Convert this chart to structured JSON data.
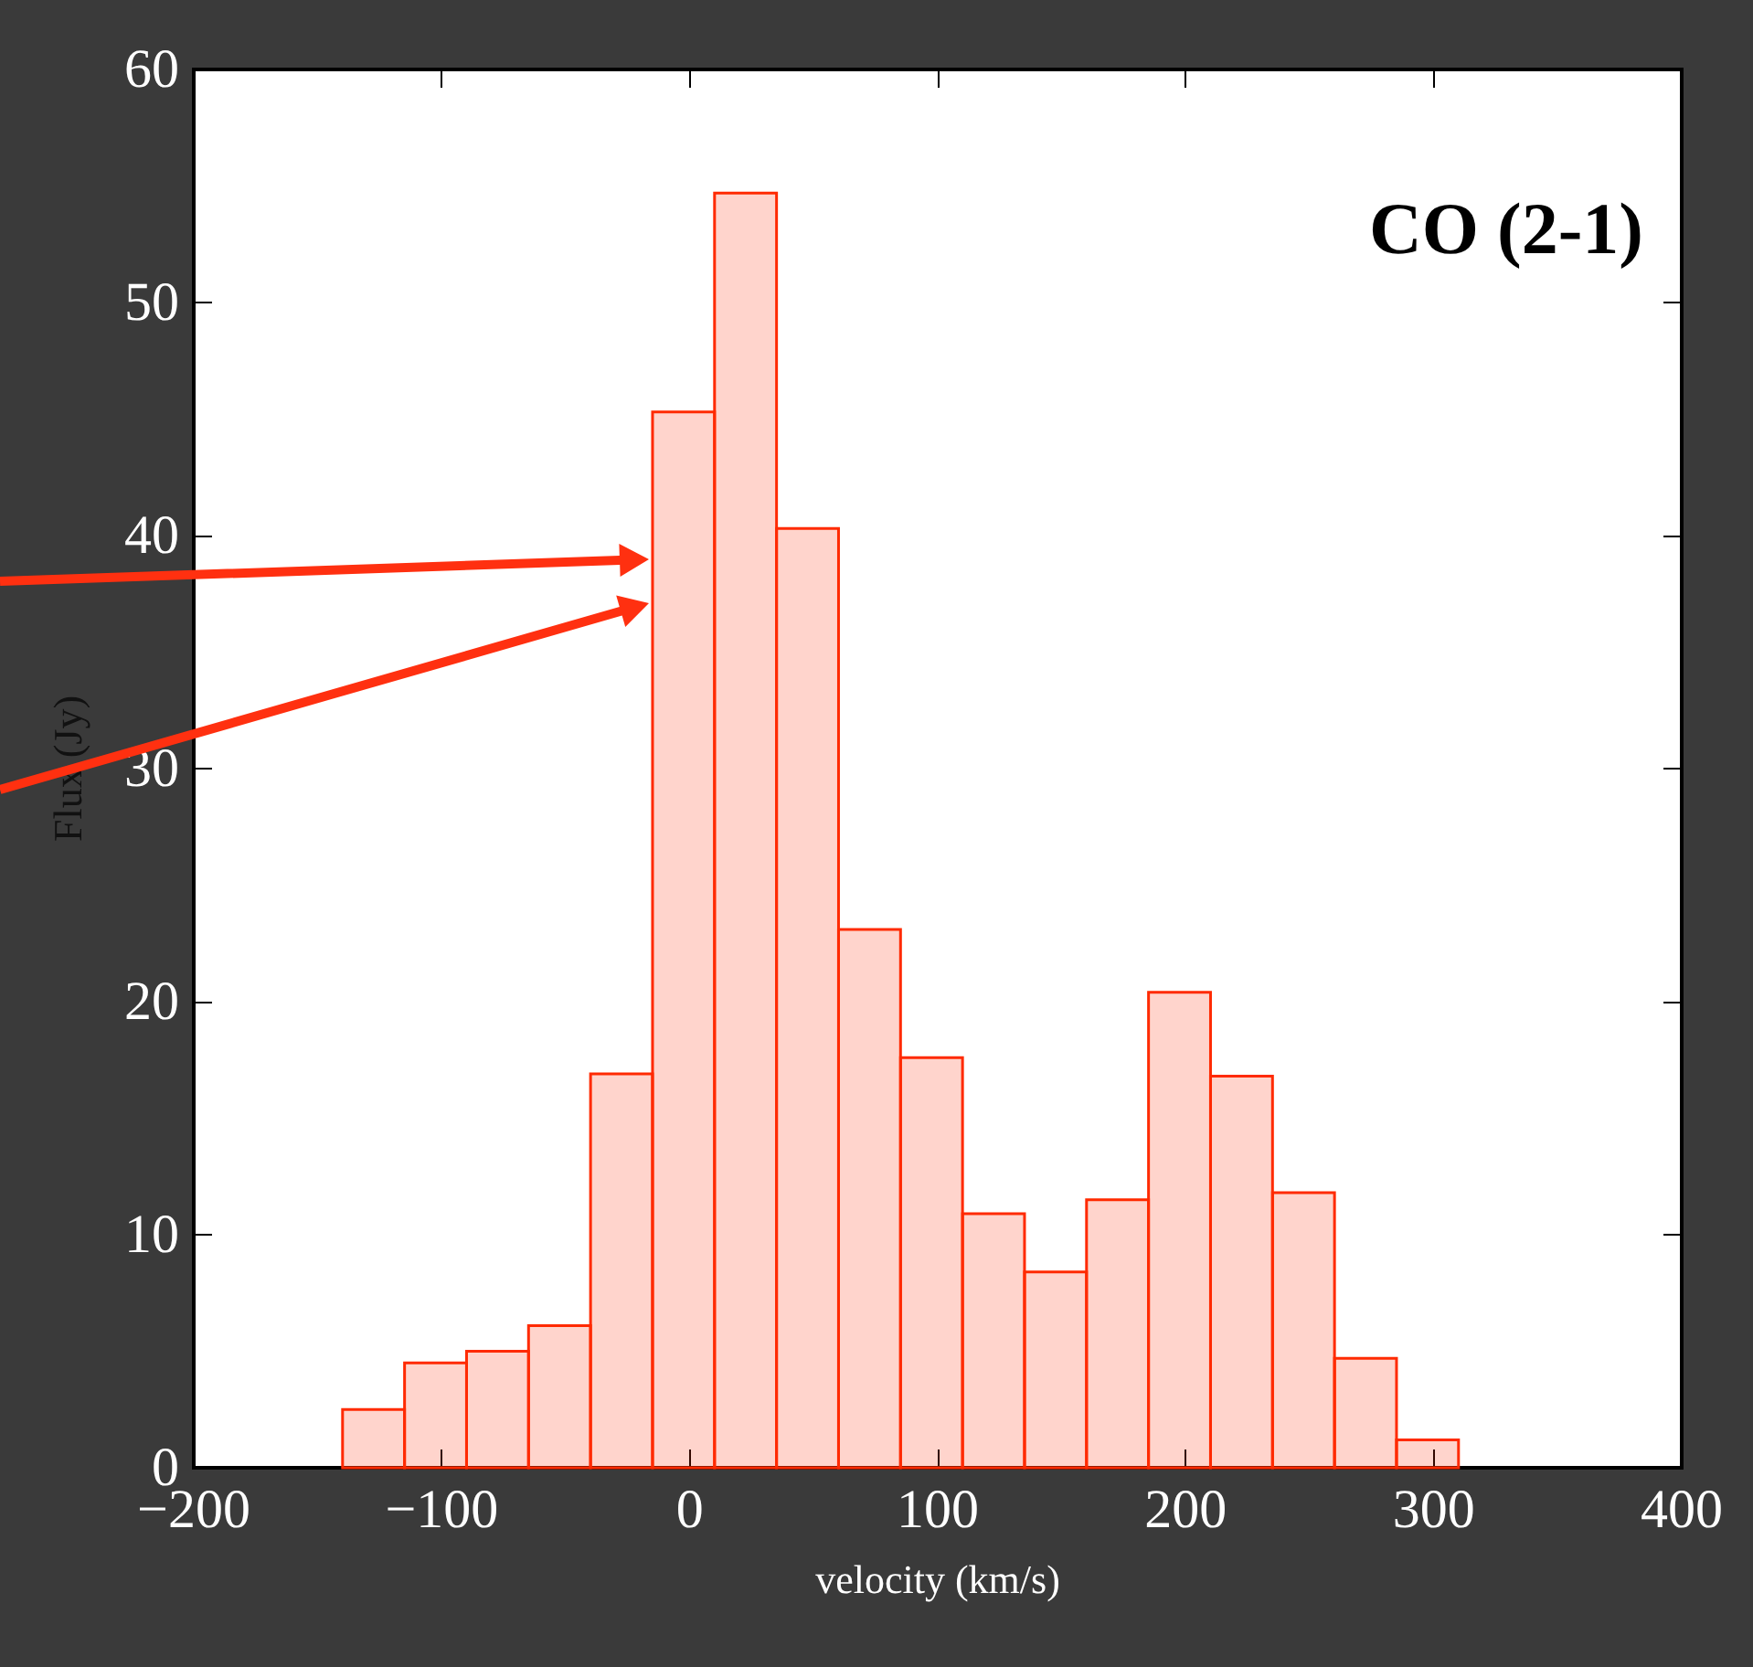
{
  "chart_data": {
    "type": "histogram",
    "xlabel": "velocity (km/s)",
    "ylabel": "Flux (Jy)",
    "annotations": [
      "CO (2-1)"
    ],
    "bins": [
      -140,
      -115,
      -90,
      -65,
      -40,
      -15,
      10,
      35,
      60,
      85,
      110,
      135,
      160,
      185,
      210,
      235,
      260,
      285,
      310
    ],
    "values": [
      2.5,
      4.5,
      5.0,
      6.1,
      16.9,
      45.3,
      54.7,
      40.3,
      23.1,
      17.6,
      10.9,
      8.4,
      11.5,
      20.4,
      16.8,
      11.8,
      4.7,
      1.2
    ],
    "color": "#ff2a00",
    "xlim": [
      -200,
      400
    ],
    "xticks": [
      {
        "value": -200,
        "label": "−200"
      },
      {
        "value": -100,
        "label": "−100"
      },
      0,
      100,
      200,
      300,
      400
    ],
    "ylim": [
      0,
      60
    ],
    "yticks": [
      0,
      10,
      20,
      30,
      40,
      50,
      60
    ],
    "grid": false
  }
}
